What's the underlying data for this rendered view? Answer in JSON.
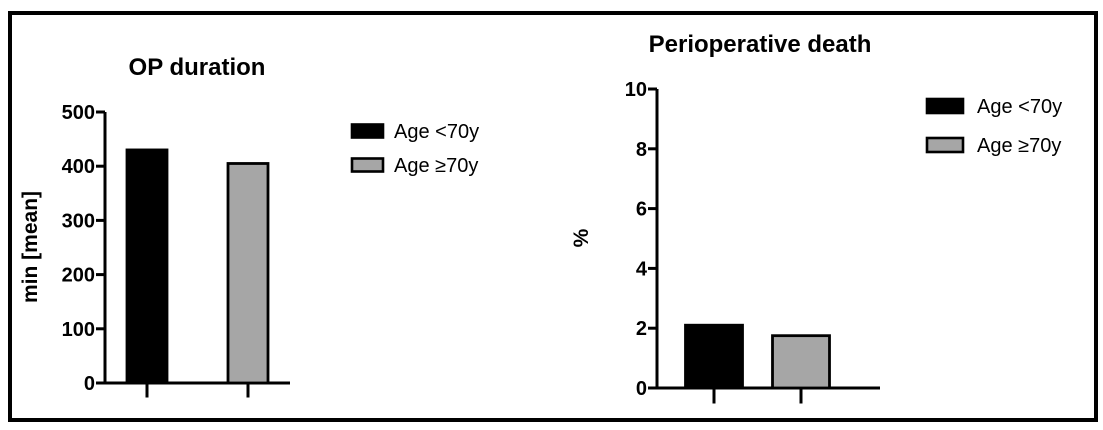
{
  "figure": {
    "background_color": "#FFFFFF",
    "border_color": "#000000",
    "accent_black": "#000000",
    "accent_gray": "#A6A6A6"
  },
  "chart_data": [
    {
      "type": "bar",
      "title": "OP duration",
      "xlabel": "",
      "ylabel": "min [mean]",
      "categories": [
        "Age <70y",
        "Age ≥70y"
      ],
      "values": [
        430,
        405
      ],
      "bar_colors": [
        "#000000",
        "#A6A6A6"
      ],
      "ylim": [
        0,
        500
      ],
      "yticks": [
        0,
        100,
        200,
        300,
        400,
        500
      ],
      "grid": "off",
      "legend_position": "right",
      "legend": [
        {
          "label": "Age <70y",
          "color": "#000000"
        },
        {
          "label": "Age ≥70y",
          "color": "#A6A6A6"
        }
      ]
    },
    {
      "type": "bar",
      "title": "Perioperative death",
      "xlabel": "",
      "ylabel": "%",
      "categories": [
        "Age <70y",
        "Age ≥70y"
      ],
      "values": [
        2.1,
        1.75
      ],
      "bar_colors": [
        "#000000",
        "#A6A6A6"
      ],
      "ylim": [
        0,
        10
      ],
      "yticks": [
        0,
        2,
        4,
        6,
        8,
        10
      ],
      "grid": "off",
      "legend_position": "right",
      "legend": [
        {
          "label": "Age <70y",
          "color": "#000000"
        },
        {
          "label": "Age ≥70y",
          "color": "#A6A6A6"
        }
      ]
    }
  ]
}
